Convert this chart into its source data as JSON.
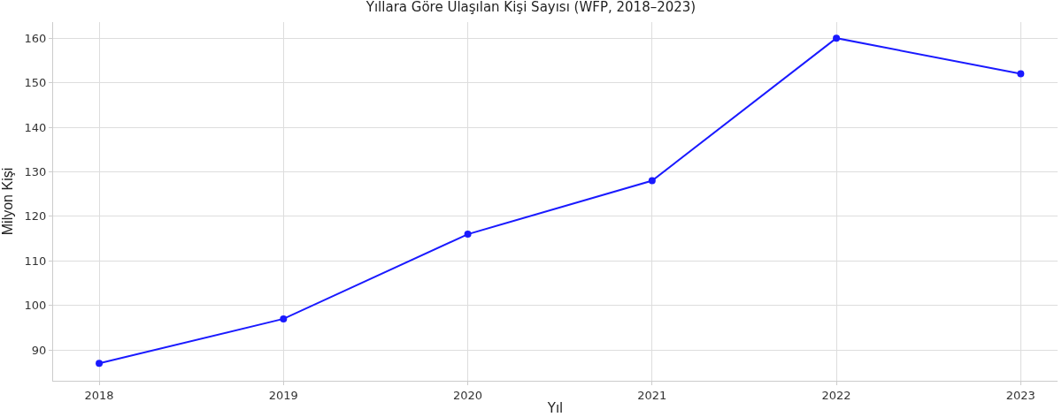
{
  "chart_data": {
    "type": "line",
    "title": "Yıllara Göre Ulaşılan Kişi Sayısı (WFP, 2018–2023)",
    "xlabel": "Yıl",
    "ylabel": "Milyon Kişi",
    "x": [
      2018,
      2019,
      2020,
      2021,
      2022,
      2023
    ],
    "series": [
      {
        "color": "#1a1aff",
        "values": [
          87,
          97,
          116,
          128,
          160,
          152
        ]
      }
    ],
    "xlim": [
      2017.75,
      2023.2
    ],
    "xticks": [
      2018,
      2019,
      2020,
      2021,
      2022,
      2023
    ],
    "ylim": [
      83.1,
      163.6
    ],
    "yticks": [
      90,
      100,
      110,
      120,
      130,
      140,
      150,
      160
    ],
    "grid": true,
    "marker": "circle",
    "line_style": "solid"
  }
}
